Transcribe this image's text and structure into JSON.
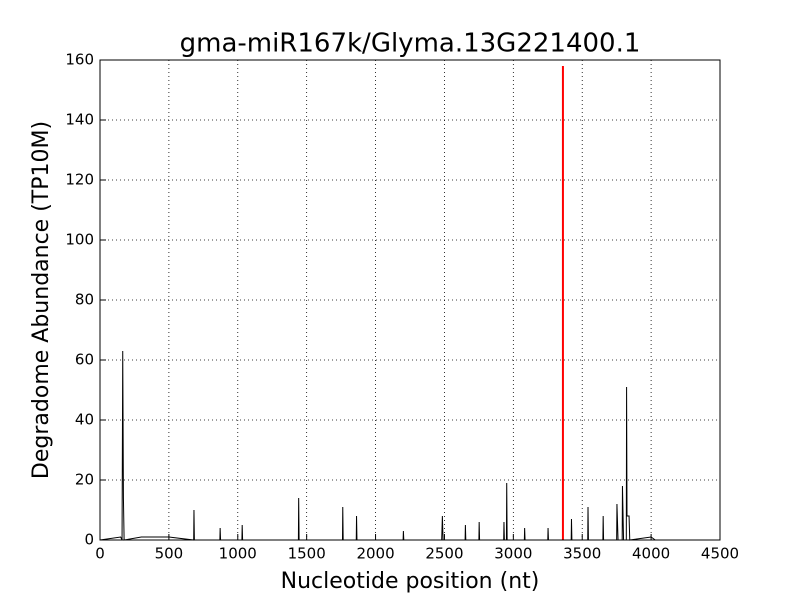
{
  "chart_data": {
    "type": "line",
    "title": "gma-miR167k/Glyma.13G221400.1",
    "xlabel": "Nucleotide position (nt)",
    "ylabel": "Degradome Abundance (TP10M)",
    "xlim": [
      0,
      4500
    ],
    "ylim": [
      0,
      160
    ],
    "xticks": [
      0,
      500,
      1000,
      1500,
      2000,
      2500,
      3000,
      3500,
      4000,
      4500
    ],
    "yticks": [
      0,
      20,
      40,
      60,
      80,
      100,
      120,
      140,
      160
    ],
    "grid": true,
    "series": [
      {
        "color": "#000000",
        "x": [
          0,
          150,
          160,
          165,
          170,
          175,
          300,
          500,
          680,
          682,
          685,
          870,
          872,
          875,
          1030,
          1032,
          1035,
          1440,
          1442,
          1445,
          1760,
          1762,
          1765,
          1860,
          1862,
          1865,
          2200,
          2202,
          2205,
          2480,
          2485,
          2490,
          2650,
          2652,
          2655,
          2750,
          2752,
          2755,
          2930,
          2932,
          2935,
          2950,
          2952,
          2955,
          3080,
          3082,
          3085,
          3250,
          3252,
          3255,
          3420,
          3422,
          3425,
          3540,
          3542,
          3545,
          3650,
          3652,
          3655,
          3750,
          3752,
          3760,
          3790,
          3792,
          3800,
          3820,
          3822,
          3825,
          3840,
          3845,
          4000,
          4030
        ],
        "values": [
          0,
          1,
          0,
          63,
          14,
          0,
          1,
          1,
          0,
          10,
          0,
          0,
          4,
          0,
          0,
          5,
          0,
          0,
          14,
          0,
          0,
          11,
          0,
          0,
          8,
          0,
          0,
          3,
          0,
          0,
          8,
          0,
          0,
          5,
          0,
          0,
          6,
          0,
          0,
          6,
          0,
          0,
          19,
          0,
          0,
          4,
          0,
          0,
          4,
          0,
          0,
          7,
          0,
          0,
          11,
          0,
          0,
          8,
          0,
          0,
          12,
          0,
          0,
          18,
          0,
          0,
          51,
          8,
          8,
          0,
          1,
          0
        ]
      },
      {
        "color": "#ff0000",
        "x": [
          3360,
          3360
        ],
        "values": [
          0,
          158
        ]
      }
    ]
  }
}
